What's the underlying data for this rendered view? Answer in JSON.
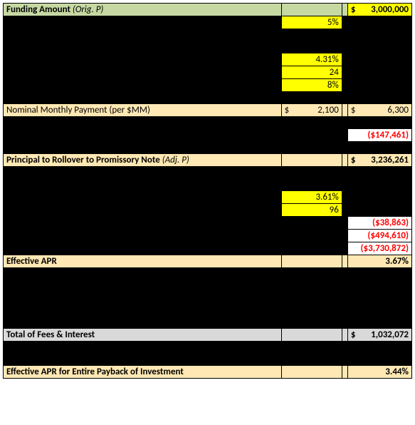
{
  "funding": {
    "label": "Funding Amount",
    "sub": "(Orig. P)",
    "value": "3,000,000"
  },
  "pct5": "5%",
  "pct431": "4.31%",
  "n24": "24",
  "pct8": "8%",
  "nominal": {
    "label": "Nominal Monthly Payment (per $MM)",
    "mid": "2,100",
    "right": "6,300"
  },
  "neg147": "($147,461)",
  "rollover": {
    "label": "Principal to Rollover to Promissory Note",
    "sub": "(Adj. P)",
    "value": "3,236,261"
  },
  "pct361": "3.61%",
  "n96": "96",
  "neg38": "($38,863)",
  "neg494": "($494,610)",
  "neg3730": "($3,730,872)",
  "effApr": {
    "label": "Effective APR",
    "value": "3.67%"
  },
  "totalFees": {
    "label": "Total of Fees & Interest",
    "value": "1,032,072"
  },
  "effAprEntire": {
    "label": "Effective APR for Entire Payback of Investment",
    "value": "3.44%"
  }
}
